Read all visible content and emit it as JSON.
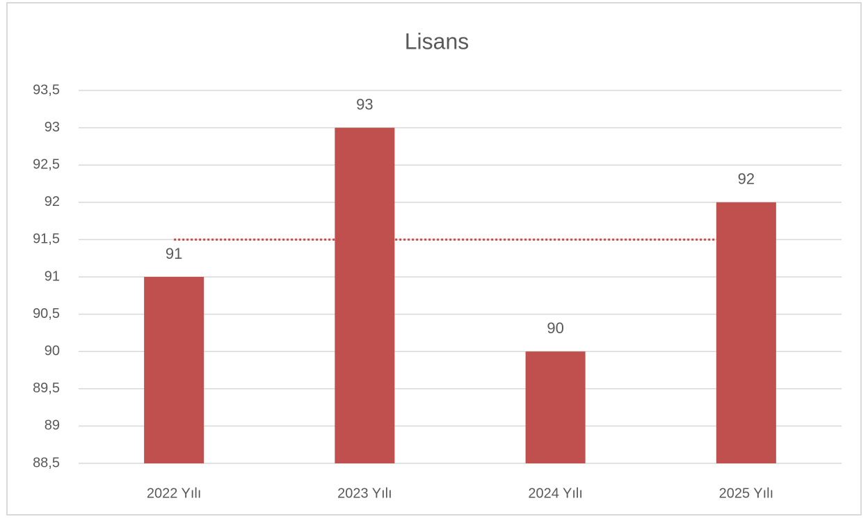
{
  "chart_data": {
    "type": "bar",
    "title": "Lisans",
    "categories": [
      "2022 Yılı",
      "2023 Yılı",
      "2024 Yılı",
      "2025 Yılı"
    ],
    "values": [
      91,
      93,
      90,
      92
    ],
    "color": "#c0504d",
    "ylim": [
      88.5,
      93.5
    ],
    "yticks": [
      {
        "value": 88.5,
        "label": "88,5"
      },
      89,
      {
        "value": 89.5,
        "label": "89,5"
      },
      90,
      {
        "value": 90.5,
        "label": "90,5"
      },
      91,
      {
        "value": 91.5,
        "label": "91,5"
      },
      92,
      {
        "value": 92.5,
        "label": "92,5"
      },
      93,
      {
        "value": 93.5,
        "label": "93,5"
      }
    ],
    "grid": true,
    "reference_line": {
      "value": 91.5,
      "color": "#c0504d",
      "style": "dotted"
    }
  }
}
